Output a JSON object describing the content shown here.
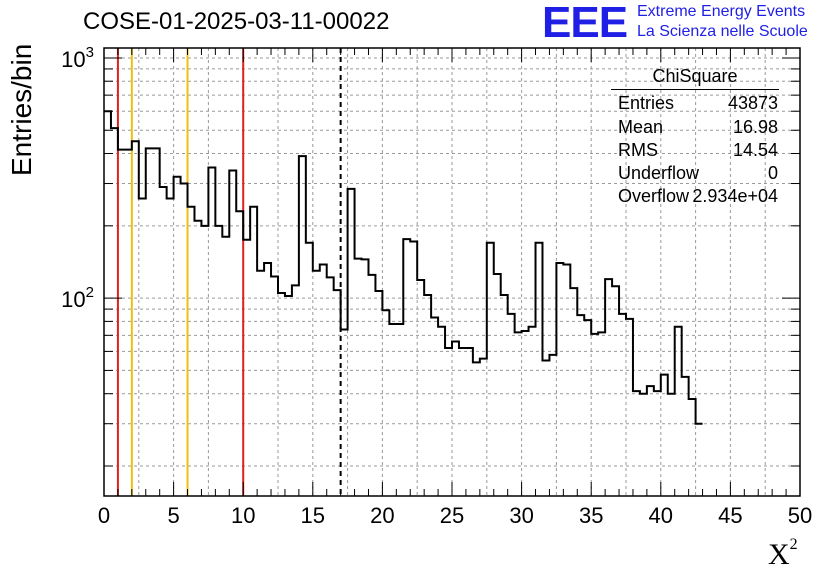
{
  "header": {
    "run_title": "COSE-01-2025-03-11-00022",
    "logo_text": "EEE",
    "logo_line1": "Extreme Energy Events",
    "logo_line2": "La Scienza nelle Scuole",
    "logo_color": "#1f1fe6"
  },
  "stats_box": {
    "title": "ChiSquare",
    "rows": [
      {
        "label": "Entries",
        "value": "43873"
      },
      {
        "label": "Mean",
        "value": "16.98"
      },
      {
        "label": "RMS",
        "value": "14.54"
      },
      {
        "label": "Underflow",
        "value": "0"
      },
      {
        "label": "Overflow",
        "value": "2.934e+04"
      }
    ]
  },
  "chart_data": {
    "type": "histogram",
    "title": "COSE-01-2025-03-11-00022",
    "xlabel": "X",
    "xlabel_superscript": "2",
    "ylabel": "Entries/bin",
    "x_ticks": [
      "0",
      "5",
      "10",
      "15",
      "20",
      "25",
      "30",
      "35",
      "40",
      "45",
      "50"
    ],
    "y_ticks": [
      "10",
      "10"
    ],
    "y_tick_exponents": [
      "2",
      "3"
    ],
    "xlim": [
      0,
      50
    ],
    "ylim": [
      15,
      1100
    ],
    "yscale": "log",
    "grid": true,
    "bin_width": 0.5,
    "bin_values": [
      600,
      510,
      415,
      415,
      450,
      260,
      420,
      420,
      290,
      260,
      320,
      300,
      240,
      210,
      200,
      350,
      200,
      180,
      340,
      230,
      175,
      240,
      130,
      140,
      123,
      105,
      102,
      113,
      390,
      170,
      130,
      138,
      122,
      108,
      74,
      285,
      146,
      145,
      125,
      107,
      89,
      78,
      78,
      176,
      172,
      119,
      103,
      83,
      76,
      62,
      66,
      62,
      62,
      54,
      56,
      170,
      126,
      103,
      86,
      72,
      73,
      76,
      170,
      55,
      58,
      140,
      138,
      110,
      85,
      81,
      71,
      72,
      120,
      112,
      86,
      82,
      41,
      40,
      43,
      41,
      48,
      40,
      76,
      47,
      38,
      30
    ],
    "reference_lines": [
      {
        "x": 1,
        "color": "#e02020",
        "style": "solid"
      },
      {
        "x": 2,
        "color": "#f0c010",
        "style": "solid"
      },
      {
        "x": 6,
        "color": "#f0c010",
        "style": "solid"
      },
      {
        "x": 10,
        "color": "#e02020",
        "style": "solid"
      },
      {
        "x": 17,
        "color": "#000000",
        "style": "dashed"
      }
    ]
  }
}
